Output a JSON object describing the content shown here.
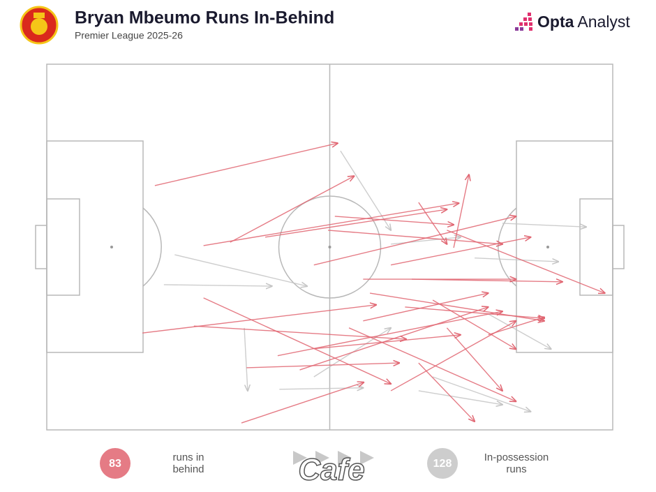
{
  "chart_data": {
    "type": "arrows",
    "title": "Bryan Mbeumo Runs In-Behind",
    "subtitle": "Premier League 2025-26",
    "brand": {
      "bold": "Opta",
      "light": "Analyst"
    },
    "watermark": "Cafe",
    "xlim": [
      0,
      100
    ],
    "ylim": [
      0,
      100
    ],
    "series": [
      {
        "name": "runs in behind",
        "count": 83,
        "color": "#e06470",
        "x_start": [
          19.1,
          27.7,
          32.4,
          16.9,
          27.7,
          34.4,
          35.3,
          26.0,
          40.8,
          47.2,
          50.9,
          71.9,
          64.5,
          70.7,
          57.1,
          53.4,
          65.7,
          60.8,
          44.7,
          68.2,
          55.9,
          63.3,
          49.7,
          65.7,
          38.6,
          78.0,
          47.2,
          70.7,
          60.8,
          55.9
        ],
        "y_start": [
          33.2,
          49.6,
          48.7,
          73.5,
          63.9,
          98.1,
          83.0,
          71.6,
          79.7,
          54.9,
          41.6,
          50.2,
          58.8,
          45.4,
          62.6,
          72.1,
          81.7,
          54.9,
          83.6,
          64.5,
          70.2,
          66.4,
          45.4,
          37.8,
          47.3,
          74.0,
          77.8,
          72.1,
          89.3,
          58.8
        ],
        "x_end": [
          51.4,
          72.8,
          54.3,
          58.2,
          60.8,
          56.0,
          62.3,
          63.5,
          80.5,
          82.9,
          71.9,
          74.6,
          91.1,
          98.6,
          87.9,
          82.9,
          75.6,
          85.5,
          78.0,
          82.9,
          78.0,
          87.9,
          80.5,
          70.7,
          70.7,
          87.9,
          73.1,
          80.5,
          82.9,
          82.9
        ],
        "y_end": [
          21.6,
          38.0,
          30.6,
          65.8,
          87.4,
          87.0,
          81.7,
          75.2,
          67.6,
          41.6,
          43.9,
          30.2,
          59.5,
          62.6,
          70.2,
          92.2,
          97.7,
          47.3,
          66.4,
          77.9,
          62.6,
          69.5,
          49.2,
          49.2,
          39.7,
          69.2,
          74.0,
          89.3,
          70.2,
          58.8
        ]
      },
      {
        "name": "In-possession runs",
        "count": 128,
        "color": "#c4c4c4",
        "x_start": [
          20.7,
          22.6,
          51.9,
          34.9,
          41.1,
          80.5,
          65.7,
          78.0,
          75.6,
          68.2,
          47.2,
          60.8
        ],
        "y_start": [
          60.3,
          52.1,
          23.7,
          72.1,
          88.9,
          43.5,
          89.3,
          68.3,
          53.0,
          85.5,
          85.5,
          49.2
        ],
        "x_end": [
          39.8,
          46.0,
          60.8,
          35.5,
          55.9,
          95.3,
          80.5,
          89.1,
          90.4,
          85.5,
          60.8,
          73.1
        ],
        "y_end": [
          60.7,
          60.7,
          45.4,
          89.3,
          88.5,
          44.5,
          93.1,
          77.9,
          54.0,
          95.0,
          72.1,
          47.3
        ]
      }
    ]
  }
}
